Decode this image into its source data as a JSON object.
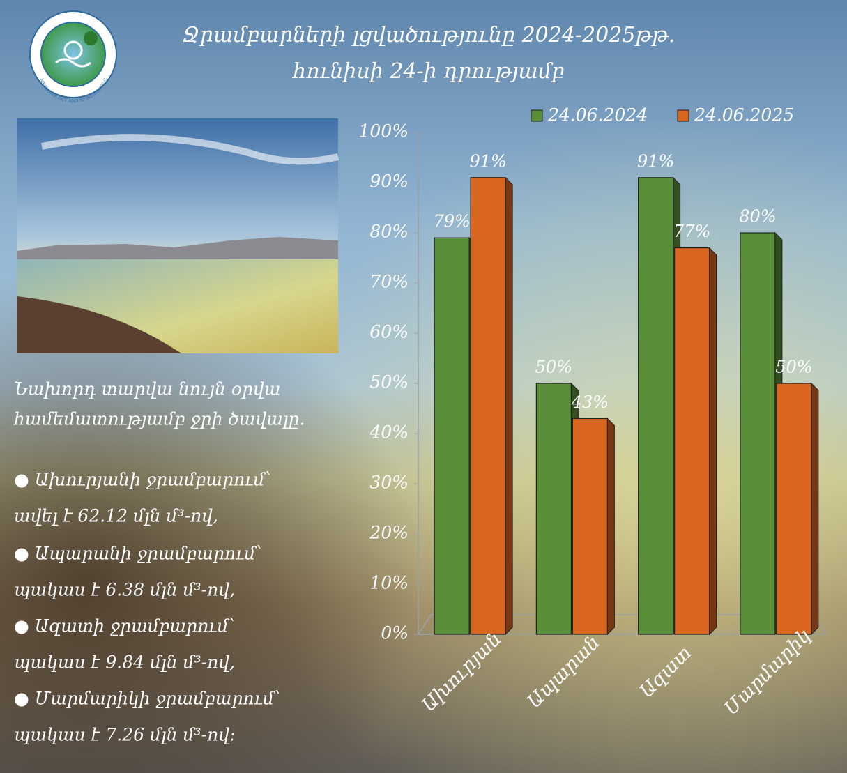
{
  "logo_text": "HYDROMETEOROLOGY AND MONITORING CENTER",
  "title_lines": [
    "Ջրամբարների լցվածությունը 2024-2025թթ.",
    "հունիսի 24-ի դրությամբ"
  ],
  "text_lines": [
    "Նախորդ տարվա նույն օրվա",
    "համեմատությամբ ջրի ծավալը.",
    "●  Ախուրյանի ջրամբարում՝",
    "ավել է 62.12 մլն մ³-ով,",
    "● Ապարանի ջրամբարում՝",
    "պակաս է 6.38 մլն մ³-ով,",
    "●  Ազատի ջրամբարում՝",
    "պակաս է  9.84 մլն մ³-ով,",
    "● Մարմարիկի ջրամբարում՝",
    "պակաս է 7.26 մլն մ³-ով:"
  ],
  "chart_data": {
    "type": "bar",
    "categories": [
      "Ախուրյան",
      "Ապարան",
      "Ազատ",
      "Մարմարիկ"
    ],
    "series": [
      {
        "name": "24.06.2024",
        "color": "#5a8f3a",
        "values": [
          79,
          50,
          91,
          80
        ],
        "value_labels": [
          "79%",
          "50%",
          "91%",
          "80%"
        ]
      },
      {
        "name": "24.06.2025",
        "color": "#d9661f",
        "values": [
          91,
          43,
          77,
          50
        ],
        "value_labels": [
          "91%",
          "43%",
          "77%",
          "50%"
        ]
      }
    ],
    "ylim": [
      0,
      100
    ],
    "yticks": [
      {
        "value": 0,
        "label": "0%"
      },
      {
        "value": 10,
        "label": "10%"
      },
      {
        "value": 20,
        "label": "20%"
      },
      {
        "value": 30,
        "label": "30%"
      },
      {
        "value": 40,
        "label": "40%"
      },
      {
        "value": 50,
        "label": "50%"
      },
      {
        "value": 60,
        "label": "60%"
      },
      {
        "value": 70,
        "label": "70%"
      },
      {
        "value": 80,
        "label": "80%"
      },
      {
        "value": 90,
        "label": "90%"
      },
      {
        "value": 100,
        "label": "100%"
      }
    ],
    "legend": "top"
  }
}
